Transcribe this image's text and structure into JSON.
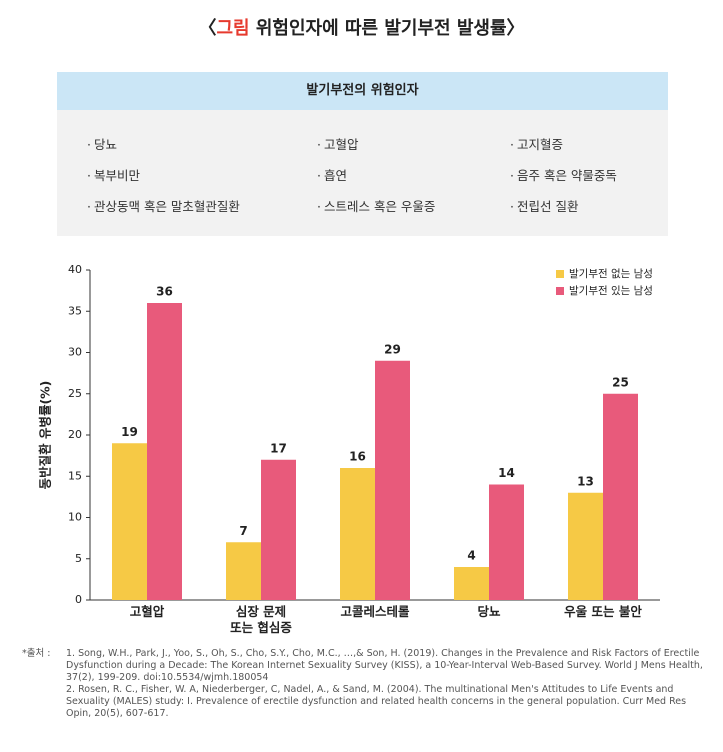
{
  "header": {
    "title_open": "〈",
    "title_label": "그림",
    "title": "위험인자에 따른 발기부전 발생률〉"
  },
  "risk_box": {
    "title": "발기부전의 위험인자",
    "columns": [
      [
        "당뇨",
        "복부비만",
        "관상동맥 혹은 말초혈관질환"
      ],
      [
        "고혈압",
        "흡연",
        "스트레스 혹은 우울증"
      ],
      [
        "고지혈증",
        "음주 혹은 약물중독",
        "전립선 질환"
      ]
    ]
  },
  "chart_data": {
    "type": "bar",
    "y_label": "동반질환 유병률(%)",
    "categories": [
      "고혈압",
      "심장 문제\n또는 협심증",
      "고콜레스테롤",
      "당뇨",
      "우울 또는 불안"
    ],
    "series": [
      {
        "name": "발기부전 없는 남성",
        "color": "#f6c945",
        "values": [
          19,
          7,
          16,
          4,
          13
        ]
      },
      {
        "name": "발기부전 있는 남성",
        "color": "#e85a7b",
        "values": [
          36,
          17,
          29,
          14,
          25
        ]
      }
    ],
    "ylim": [
      0,
      40
    ],
    "yticks": [
      0,
      5,
      10,
      15,
      20,
      25,
      30,
      35,
      40
    ],
    "legend": "upper-right"
  },
  "footnote": {
    "label": "*출처 :",
    "refs": [
      "1. Song, W.H., Park, J., Yoo, S., Oh, S., Cho, S.Y., Cho, M.C., …,& Son, H. (2019). Changes in the Prevalence and Risk Factors of Erectile Dysfunction during a Decade: The Korean Internet Sexuality Survey (KISS), a 10-Year-Interval Web-Based Survey. World J Mens Health, 37(2), 199-209. doi:10.5534/wjmh.180054",
      "2. Rosen, R. C., Fisher, W. A, Niederberger, C, Nadel, A., & Sand, M. (2004). The multinational Men's Attitudes to Life Events and Sexuality (MALES) study: I. Prevalence of erectile dysfunction and related health concerns in the general population. Curr Med Res Opin, 20(5), 607-617."
    ]
  }
}
